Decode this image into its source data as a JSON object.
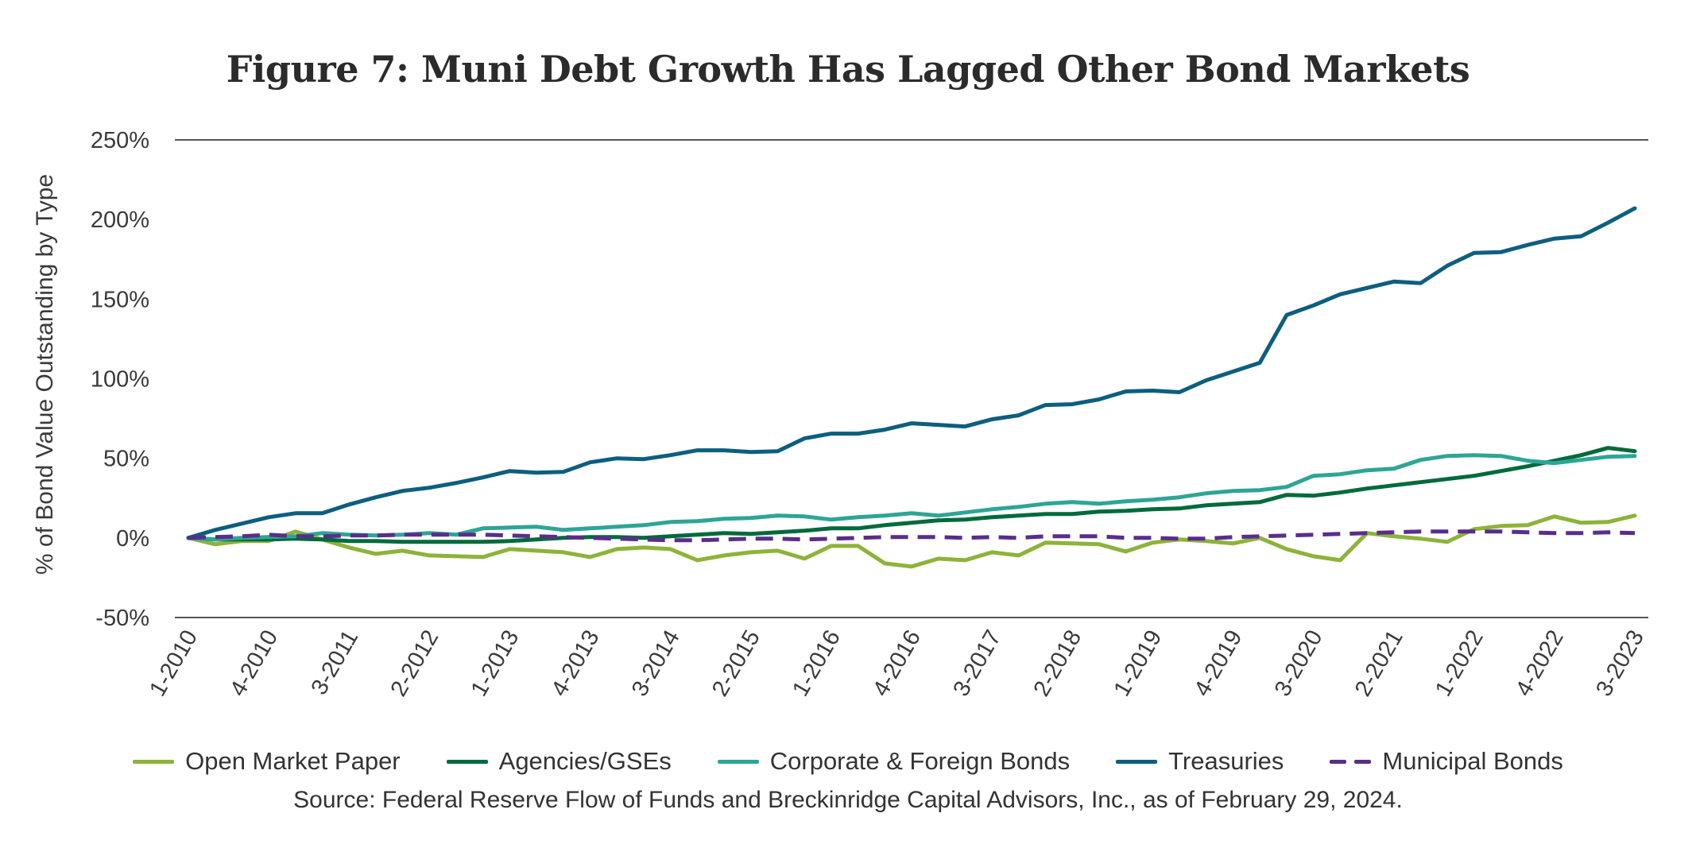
{
  "chart_data": {
    "type": "line",
    "title": "Figure 7: Muni Debt Growth Has Lagged Other Bond Markets",
    "xlabel": "",
    "ylabel": "% of Bond Value Outstanding by Type",
    "ylim": [
      -50,
      250
    ],
    "yticks": [
      250,
      200,
      150,
      100,
      50,
      0,
      -50
    ],
    "ytick_labels": [
      "250%",
      "200%",
      "150%",
      "100%",
      "50%",
      "0%",
      "-50%"
    ],
    "grid": false,
    "legend_position": "bottom",
    "x": [
      "1-2010",
      "2-2010",
      "3-2010",
      "4-2010",
      "1-2011",
      "2-2011",
      "3-2011",
      "4-2011",
      "1-2012",
      "2-2012",
      "3-2012",
      "4-2012",
      "1-2013",
      "2-2013",
      "3-2013",
      "4-2013",
      "1-2014",
      "2-2014",
      "3-2014",
      "4-2014",
      "1-2015",
      "2-2015",
      "3-2015",
      "4-2015",
      "1-2016",
      "2-2016",
      "3-2016",
      "4-2016",
      "1-2017",
      "2-2017",
      "3-2017",
      "4-2017",
      "1-2018",
      "2-2018",
      "3-2018",
      "4-2018",
      "1-2019",
      "2-2019",
      "3-2019",
      "4-2019",
      "1-2020",
      "2-2020",
      "3-2020",
      "4-2020",
      "1-2021",
      "2-2021",
      "3-2021",
      "4-2021",
      "1-2022",
      "2-2022",
      "3-2022",
      "4-2022",
      "1-2023",
      "2-2023",
      "3-2023"
    ],
    "xtick_labels": [
      "1-2010",
      "4-2010",
      "3-2011",
      "2-2012",
      "1-2013",
      "4-2013",
      "3-2014",
      "2-2015",
      "1-2016",
      "4-2016",
      "3-2017",
      "2-2018",
      "1-2019",
      "4-2019",
      "3-2020",
      "2-2021",
      "1-2022",
      "4-2022",
      "3-2023"
    ],
    "series": [
      {
        "name": "Open Market Paper",
        "color": "#8db33a",
        "dashed": false,
        "values": [
          0,
          -4,
          -2,
          -2,
          4,
          -1,
          -6,
          -10,
          -8,
          -11,
          -11.5,
          -12,
          -7,
          -8,
          -9,
          -12,
          -7,
          -6,
          -7,
          -14,
          -11,
          -9,
          -8,
          -13,
          -5,
          -5,
          -16,
          -18,
          -13,
          -14,
          -9,
          -11,
          -3,
          -3.5,
          -4,
          -8.5,
          -3,
          -1,
          -2,
          -3.5,
          0,
          -7,
          -11.5,
          -14,
          3,
          1,
          -0.5,
          -2.5,
          5.5,
          7.5,
          8,
          13.5,
          9.5,
          10,
          14
        ]
      },
      {
        "name": "Agencies/GSEs",
        "color": "#006a3c",
        "dashed": false,
        "values": [
          0,
          -1,
          -1,
          -1,
          -0.5,
          -1,
          -2,
          -2,
          -2.5,
          -2.5,
          -2.5,
          -2.5,
          -2,
          -1,
          0,
          0.5,
          0.5,
          0,
          1,
          2,
          3,
          2.5,
          3.5,
          4.5,
          6,
          6,
          8,
          9.5,
          11,
          11.5,
          13,
          14,
          15,
          15,
          16.5,
          17,
          18,
          18.5,
          20.5,
          21.5,
          22.5,
          27,
          26.5,
          28.5,
          31,
          33,
          35,
          37,
          39,
          42,
          45,
          48.5,
          52,
          56.5,
          54.5
        ]
      },
      {
        "name": "Corporate & Foreign Bonds",
        "color": "#2ea596",
        "dashed": false,
        "values": [
          0,
          -1,
          0,
          0.5,
          1,
          3,
          2,
          1.5,
          2,
          3,
          2,
          6,
          6.5,
          7,
          5,
          6,
          7,
          8,
          10,
          10.5,
          12,
          12.5,
          14,
          13.5,
          11.5,
          13,
          14,
          15.5,
          14,
          16,
          18,
          19.5,
          21.5,
          22.5,
          21.5,
          23,
          24,
          25.5,
          28,
          29.5,
          30,
          32,
          39,
          40,
          42.5,
          43.5,
          49,
          51.5,
          52,
          51.5,
          48.5,
          47,
          49,
          51,
          51.5
        ]
      },
      {
        "name": "Treasuries",
        "color": "#0d5e80",
        "dashed": false,
        "values": [
          0,
          5,
          9,
          13,
          15.5,
          15.5,
          21,
          25.5,
          29.5,
          31.5,
          34.5,
          38,
          42,
          41,
          41.5,
          47.5,
          50,
          49.5,
          52,
          55,
          55,
          54,
          54.5,
          62.5,
          65.5,
          65.5,
          68,
          72,
          71,
          70,
          74.5,
          77,
          83.5,
          84,
          87,
          92,
          92.5,
          91.5,
          99,
          104.5,
          110,
          140,
          146,
          153,
          157,
          161,
          160,
          171,
          179,
          179.5,
          184,
          188,
          189.5,
          198,
          207
        ]
      },
      {
        "name": "Municipal Bonds",
        "color": "#5a2d8c",
        "dashed": true,
        "values": [
          0,
          0.5,
          1,
          2,
          1,
          1,
          1.5,
          1.5,
          2,
          2,
          2,
          2,
          1.5,
          1,
          0.5,
          0,
          -0.5,
          -1,
          -1.5,
          -1.5,
          -1,
          -0.5,
          -0.5,
          -1,
          -0.5,
          0,
          0.5,
          0.5,
          0.5,
          0,
          0.5,
          0,
          1,
          1,
          1,
          0,
          0,
          -0.5,
          -0.5,
          0.5,
          1,
          1.5,
          2,
          2.5,
          3,
          3.5,
          4,
          4,
          4,
          4,
          3.5,
          3,
          3,
          3.5,
          3
        ]
      }
    ]
  },
  "legend": {
    "items": [
      "Open Market Paper",
      "Agencies/GSEs",
      "Corporate & Foreign Bonds",
      "Treasuries",
      "Municipal Bonds"
    ]
  },
  "source": "Source: Federal Reserve Flow of Funds and Breckinridge Capital Advisors, Inc., as of February 29, 2024."
}
